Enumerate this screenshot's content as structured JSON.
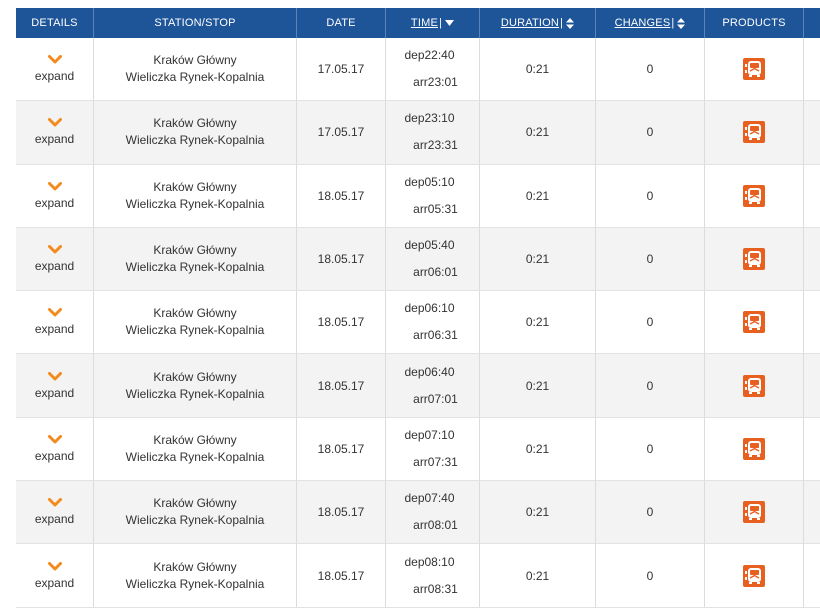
{
  "header": {
    "details": "DETAILS",
    "station": "STATION/STOP",
    "date": "DATE",
    "time": "TIME",
    "duration": "DURATION",
    "changes": "CHANGES",
    "products": "PRODUCTS"
  },
  "colors": {
    "header_bg": "#1e5599",
    "accent": "#e8601f",
    "row_alt": "#f3f3f3"
  },
  "icons": {
    "expand": "chevron-down-icon",
    "product": "bus-product-icon",
    "sort_active": "triangle-down-icon",
    "sort": "sort-arrows-icon"
  },
  "rows": [
    {
      "expand": "expand",
      "from": "Kraków Główny",
      "to": "Wieliczka Rynek-Kopalnia",
      "date": "17.05.17",
      "dep": "dep22:40",
      "arr": "arr23:01",
      "duration": "0:21",
      "changes": "0"
    },
    {
      "expand": "expand",
      "from": "Kraków Główny",
      "to": "Wieliczka Rynek-Kopalnia",
      "date": "17.05.17",
      "dep": "dep23:10",
      "arr": "arr23:31",
      "duration": "0:21",
      "changes": "0"
    },
    {
      "expand": "expand",
      "from": "Kraków Główny",
      "to": "Wieliczka Rynek-Kopalnia",
      "date": "18.05.17",
      "dep": "dep05:10",
      "arr": "arr05:31",
      "duration": "0:21",
      "changes": "0"
    },
    {
      "expand": "expand",
      "from": "Kraków Główny",
      "to": "Wieliczka Rynek-Kopalnia",
      "date": "18.05.17",
      "dep": "dep05:40",
      "arr": "arr06:01",
      "duration": "0:21",
      "changes": "0"
    },
    {
      "expand": "expand",
      "from": "Kraków Główny",
      "to": "Wieliczka Rynek-Kopalnia",
      "date": "18.05.17",
      "dep": "dep06:10",
      "arr": "arr06:31",
      "duration": "0:21",
      "changes": "0"
    },
    {
      "expand": "expand",
      "from": "Kraków Główny",
      "to": "Wieliczka Rynek-Kopalnia",
      "date": "18.05.17",
      "dep": "dep06:40",
      "arr": "arr07:01",
      "duration": "0:21",
      "changes": "0"
    },
    {
      "expand": "expand",
      "from": "Kraków Główny",
      "to": "Wieliczka Rynek-Kopalnia",
      "date": "18.05.17",
      "dep": "dep07:10",
      "arr": "arr07:31",
      "duration": "0:21",
      "changes": "0"
    },
    {
      "expand": "expand",
      "from": "Kraków Główny",
      "to": "Wieliczka Rynek-Kopalnia",
      "date": "18.05.17",
      "dep": "dep07:40",
      "arr": "arr08:01",
      "duration": "0:21",
      "changes": "0"
    },
    {
      "expand": "expand",
      "from": "Kraków Główny",
      "to": "Wieliczka Rynek-Kopalnia",
      "date": "18.05.17",
      "dep": "dep08:10",
      "arr": "arr08:31",
      "duration": "0:21",
      "changes": "0"
    }
  ]
}
